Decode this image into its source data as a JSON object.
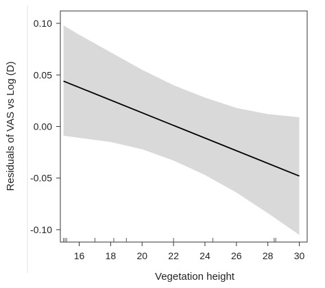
{
  "chart_data": {
    "type": "line",
    "title": "",
    "xlabel": "Vegetation height",
    "ylabel": "Residuals of VAS vs Log (D)",
    "xlim": [
      14.8,
      30.5
    ],
    "ylim": [
      -0.112,
      0.112
    ],
    "xticks": [
      16,
      18,
      20,
      22,
      24,
      26,
      28,
      30
    ],
    "yticks": [
      -0.1,
      -0.05,
      0.0,
      0.05,
      0.1
    ],
    "ytick_labels": [
      "-0.10",
      "-0.05",
      "0.00",
      "0.05",
      "0.10"
    ],
    "fit_line": {
      "x": [
        15,
        30
      ],
      "y": [
        0.044,
        -0.048
      ]
    },
    "confidence_band": {
      "x": [
        15,
        16,
        18,
        20,
        22,
        24,
        26,
        28,
        30
      ],
      "upper": [
        0.098,
        0.089,
        0.072,
        0.055,
        0.04,
        0.028,
        0.018,
        0.012,
        0.009
      ],
      "lower": [
        -0.009,
        -0.011,
        -0.015,
        -0.022,
        -0.033,
        -0.047,
        -0.064,
        -0.084,
        -0.105
      ]
    },
    "rug_x": [
      15.0,
      15.1,
      15.2,
      17.0,
      18.2,
      19.0,
      22.0,
      24.5,
      28.4,
      28.5
    ],
    "grid": false,
    "colors": {
      "line": "#000000",
      "band": "#d9d9d9",
      "axis": "#333333"
    }
  }
}
